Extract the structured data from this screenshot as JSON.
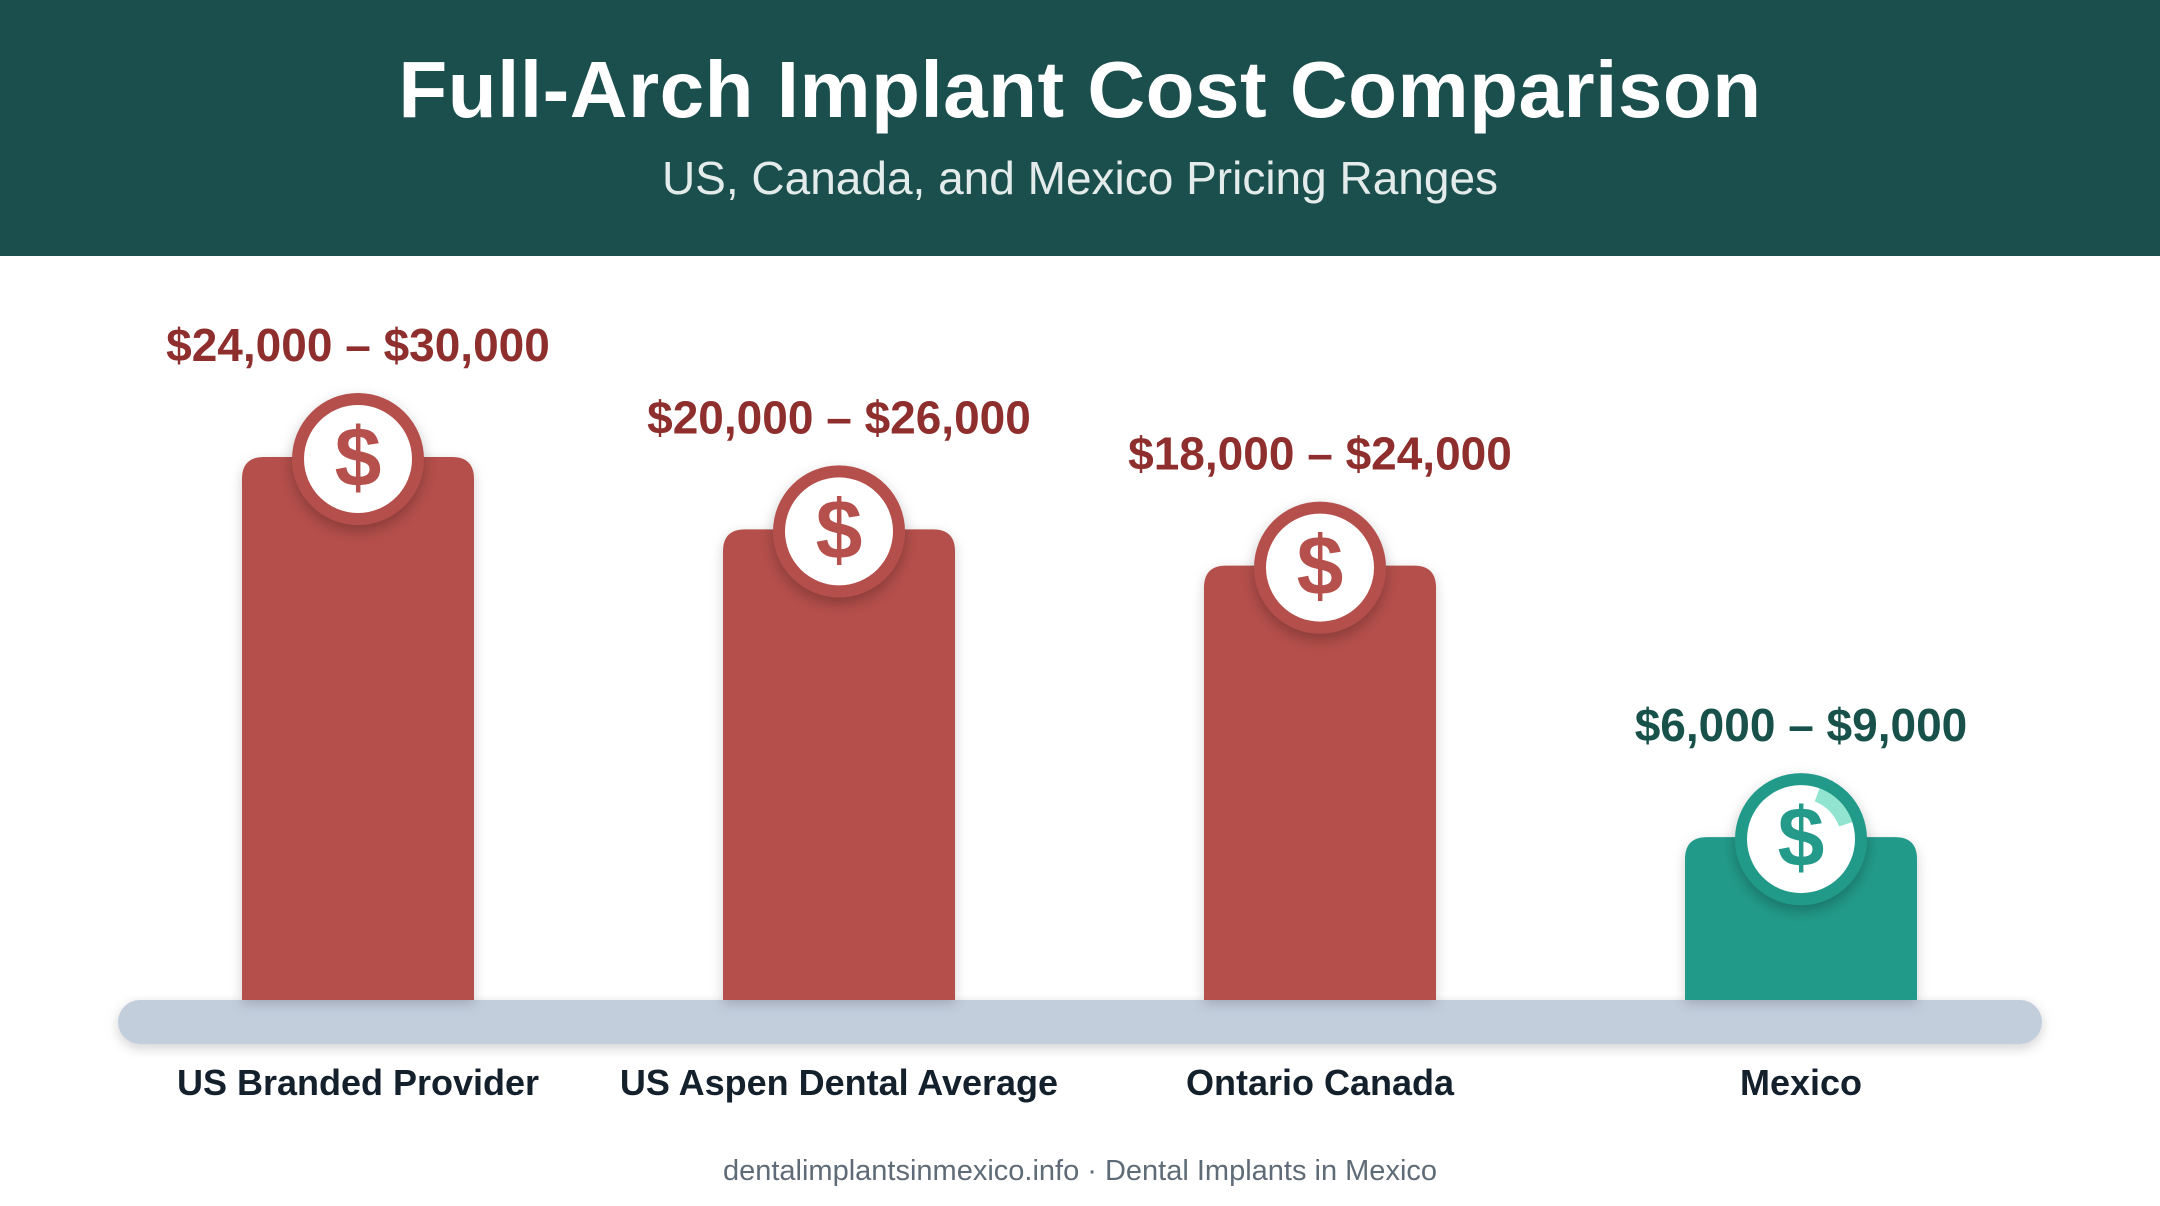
{
  "header": {
    "title": "Full-Arch Implant Cost Comparison",
    "subtitle": "US, Canada, and Mexico Pricing Ranges"
  },
  "footer": {
    "text": "dentalimplantsinmexico.info · Dental Implants in Mexico"
  },
  "colors": {
    "header_bg": "#1b4f4e",
    "bar_high": "#b5504c",
    "bar_low": "#239a8a",
    "label_high": "#8e2f2e",
    "label_low": "#17514a",
    "baseline": "#c3cedd"
  },
  "chart_data": {
    "type": "bar",
    "categories": [
      "US Branded Provider",
      "US Aspen Dental Average",
      "Ontario Canada",
      "Mexico"
    ],
    "ranges": [
      [
        24000,
        30000
      ],
      [
        20000,
        26000
      ],
      [
        18000,
        24000
      ],
      [
        6000,
        9000
      ]
    ],
    "value_labels": [
      "$24,000 – $30,000",
      "$20,000 – $26,000",
      "$18,000 – $24,000",
      "$6,000 – $9,000"
    ],
    "highlight": [
      false,
      false,
      false,
      true
    ],
    "icon": "dollar-coin-icon",
    "grid": false,
    "legend": "none"
  }
}
